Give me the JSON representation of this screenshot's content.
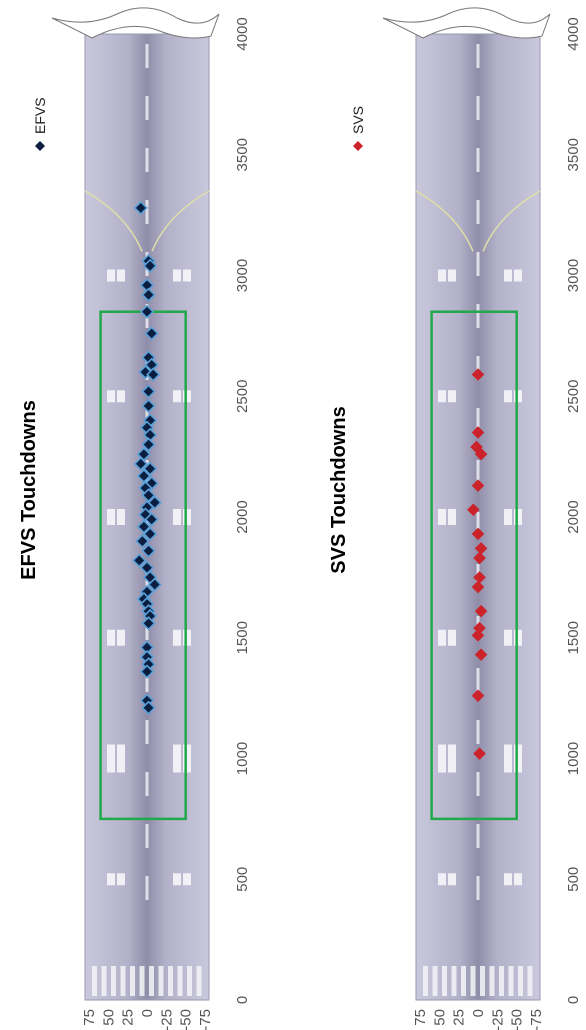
{
  "chart_data": [
    {
      "type": "scatter",
      "title": "EFVS Touchdowns",
      "series": [
        {
          "name": "EFVS",
          "color": "#0b1e3f",
          "outline": "#5aa0d8",
          "marker": "diamond",
          "points": [
            {
              "x": 3280,
              "y": 8
            },
            {
              "x": 3060,
              "y": -2
            },
            {
              "x": 3040,
              "y": -4
            },
            {
              "x": 2960,
              "y": 0
            },
            {
              "x": 2920,
              "y": -2
            },
            {
              "x": 2850,
              "y": 0
            },
            {
              "x": 2760,
              "y": -6
            },
            {
              "x": 2660,
              "y": -2
            },
            {
              "x": 2630,
              "y": -6
            },
            {
              "x": 2600,
              "y": 2
            },
            {
              "x": 2590,
              "y": -8
            },
            {
              "x": 2520,
              "y": -2
            },
            {
              "x": 2460,
              "y": -2
            },
            {
              "x": 2400,
              "y": -4
            },
            {
              "x": 2370,
              "y": 0
            },
            {
              "x": 2340,
              "y": -4
            },
            {
              "x": 2300,
              "y": -2
            },
            {
              "x": 2260,
              "y": 4
            },
            {
              "x": 2220,
              "y": 8
            },
            {
              "x": 2200,
              "y": -4
            },
            {
              "x": 2170,
              "y": 4
            },
            {
              "x": 2140,
              "y": -6
            },
            {
              "x": 2120,
              "y": 2
            },
            {
              "x": 2090,
              "y": -2
            },
            {
              "x": 2060,
              "y": -10
            },
            {
              "x": 2040,
              "y": 0
            },
            {
              "x": 2010,
              "y": 2
            },
            {
              "x": 1990,
              "y": -6
            },
            {
              "x": 1960,
              "y": 4
            },
            {
              "x": 1930,
              "y": -4
            },
            {
              "x": 1900,
              "y": 6
            },
            {
              "x": 1860,
              "y": -2
            },
            {
              "x": 1820,
              "y": 10
            },
            {
              "x": 1790,
              "y": 0
            },
            {
              "x": 1750,
              "y": -4
            },
            {
              "x": 1720,
              "y": -10
            },
            {
              "x": 1690,
              "y": 0
            },
            {
              "x": 1660,
              "y": 4
            },
            {
              "x": 1640,
              "y": 0
            },
            {
              "x": 1610,
              "y": -2
            },
            {
              "x": 1590,
              "y": -4
            },
            {
              "x": 1560,
              "y": -2
            },
            {
              "x": 1460,
              "y": 0
            },
            {
              "x": 1420,
              "y": 0
            },
            {
              "x": 1390,
              "y": -2
            },
            {
              "x": 1360,
              "y": 0
            },
            {
              "x": 1240,
              "y": 0
            },
            {
              "x": 1210,
              "y": -2
            }
          ]
        }
      ],
      "xlim": [
        0,
        4000
      ],
      "ylim": [
        -75,
        75
      ],
      "xticks": [
        0,
        500,
        1000,
        1500,
        2000,
        2500,
        3000,
        3500,
        4000
      ],
      "xtick_labels": [
        "0",
        "500",
        "1000",
        "1500",
        "2000",
        "2500",
        "3000",
        "3500",
        "4000"
      ],
      "yticks": [
        75,
        50,
        25,
        0,
        -25,
        -50,
        -75
      ],
      "ytick_labels": [
        "75",
        "50",
        "25",
        "0",
        "-25",
        "-50",
        "-75"
      ],
      "zone": {
        "x_from": 750,
        "x_to": 2850,
        "y_from": -50,
        "y_to": 60,
        "color": "#21a84a"
      },
      "legend": "top-right"
    },
    {
      "type": "scatter",
      "title": "SVS Touchdowns",
      "series": [
        {
          "name": "SVS",
          "color": "#cc2229",
          "marker": "diamond",
          "points": [
            {
              "x": 2590,
              "y": 0
            },
            {
              "x": 2350,
              "y": 0
            },
            {
              "x": 2290,
              "y": 2
            },
            {
              "x": 2260,
              "y": -4
            },
            {
              "x": 2130,
              "y": 0
            },
            {
              "x": 2030,
              "y": 6
            },
            {
              "x": 1930,
              "y": 0
            },
            {
              "x": 1870,
              "y": -4
            },
            {
              "x": 1830,
              "y": -2
            },
            {
              "x": 1750,
              "y": -2
            },
            {
              "x": 1710,
              "y": 0
            },
            {
              "x": 1610,
              "y": -4
            },
            {
              "x": 1540,
              "y": -2
            },
            {
              "x": 1510,
              "y": 0
            },
            {
              "x": 1430,
              "y": -4
            },
            {
              "x": 1260,
              "y": 0
            },
            {
              "x": 1020,
              "y": -2
            }
          ]
        }
      ],
      "xlim": [
        0,
        4000
      ],
      "ylim": [
        -75,
        75
      ],
      "xticks": [
        0,
        500,
        1000,
        1500,
        2000,
        2500,
        3000,
        3500,
        4000
      ],
      "xtick_labels": [
        "0",
        "500",
        "1000",
        "1500",
        "2000",
        "2500",
        "3000",
        "3500",
        "4000"
      ],
      "yticks": [
        75,
        50,
        25,
        0,
        -25,
        -50,
        -75
      ],
      "ytick_labels": [
        "75",
        "50",
        "25",
        "0",
        "-25",
        "-50",
        "-75"
      ],
      "zone": {
        "x_from": 750,
        "x_to": 2850,
        "y_from": -50,
        "y_to": 60,
        "color": "#21a84a"
      },
      "legend": "top-right"
    }
  ]
}
